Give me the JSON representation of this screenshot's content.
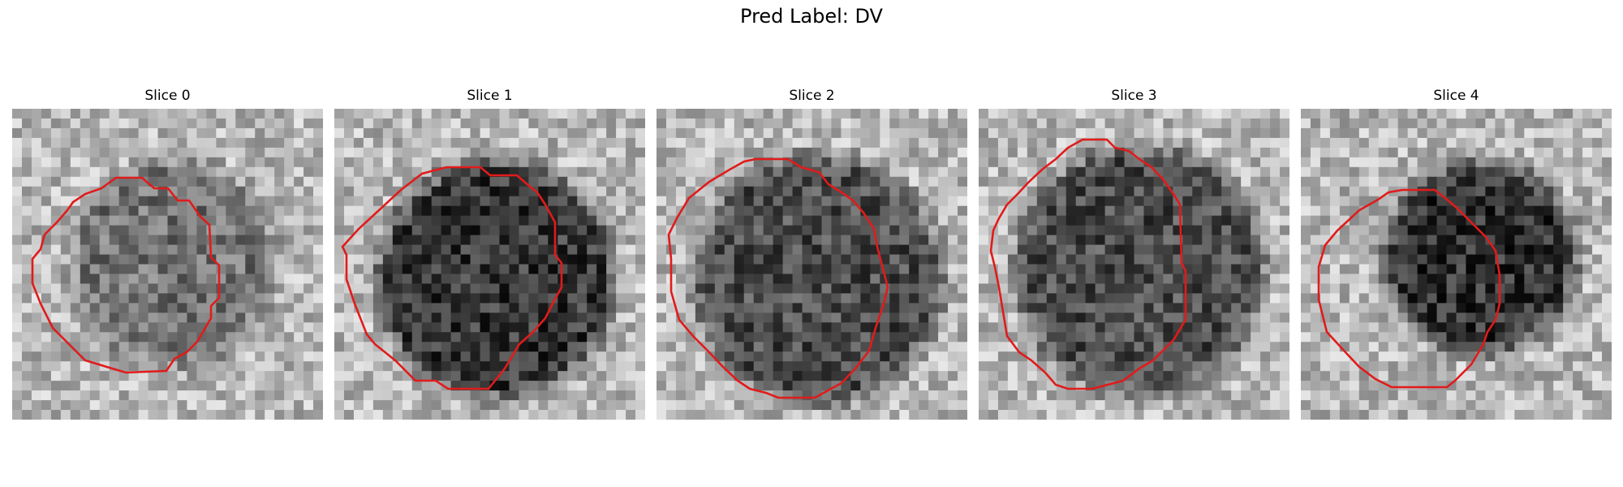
{
  "figure": {
    "title": "Pred Label: DV"
  },
  "panels": [
    {
      "title": "Slice 0"
    },
    {
      "title": "Slice 1"
    },
    {
      "title": "Slice 2"
    },
    {
      "title": "Slice 3"
    },
    {
      "title": "Slice 4"
    }
  ],
  "colors": {
    "contour": "#e11b1b",
    "background": "#ffffff"
  }
}
